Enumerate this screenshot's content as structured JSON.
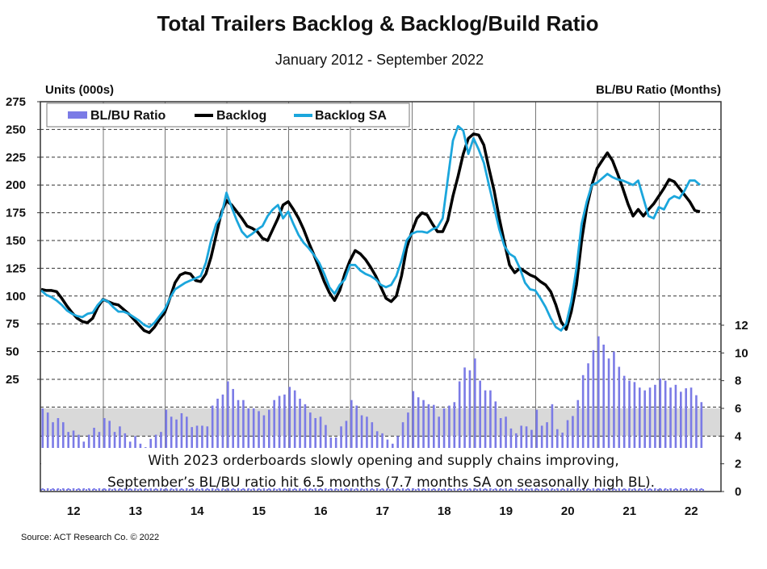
{
  "chart_data": {
    "type": "bar+line",
    "title": "Total Trailers Backlog & Backlog/Build Ratio",
    "subtitle": "January 2012 - September 2022",
    "ylabel_left": "Units (000s)",
    "ylabel_right": "BL/BU Ratio (Months)",
    "ylim_left": [
      0,
      275
    ],
    "ylim_right": [
      0,
      14
    ],
    "yticks_left": [
      "275",
      "250",
      "225",
      "200",
      "175",
      "150",
      "125",
      "100",
      "75",
      "50",
      "25"
    ],
    "yticks_right": [
      "12",
      "10",
      "8",
      "6",
      "4",
      "2",
      "0"
    ],
    "x_start": "2012-01",
    "x_end": "2022-09",
    "xticks": [
      "12",
      "13",
      "14",
      "15",
      "16",
      "17",
      "18",
      "19",
      "20",
      "21",
      "22"
    ],
    "grid": true,
    "shaded_band_right": [
      4,
      6
    ],
    "legend_position": "top-left",
    "colors": {
      "ratio": "#7b7be6",
      "backlog": "#000000",
      "backlog_sa": "#1ba6dc",
      "band": "#d9d9d9"
    },
    "series": [
      {
        "name": "BL/BU Ratio",
        "type": "bar",
        "axis": "right",
        "values": [
          6.0,
          5.7,
          5.0,
          5.3,
          5.0,
          4.3,
          4.4,
          4.1,
          3.6,
          4.1,
          4.6,
          4.3,
          5.3,
          5.1,
          4.3,
          4.7,
          4.2,
          3.6,
          4.0,
          3.45,
          3.2,
          3.8,
          4.1,
          4.3,
          5.9,
          5.4,
          5.2,
          5.65,
          5.4,
          4.65,
          4.75,
          4.75,
          4.7,
          6.2,
          6.7,
          7.0,
          7.95,
          7.4,
          6.6,
          6.6,
          6.0,
          6.0,
          5.8,
          5.5,
          5.9,
          6.6,
          6.9,
          7.0,
          7.55,
          7.3,
          6.7,
          6.3,
          5.7,
          5.3,
          5.4,
          4.8,
          3.9,
          3.9,
          4.7,
          5.1,
          6.6,
          6.2,
          5.5,
          5.4,
          5.0,
          4.35,
          4.2,
          3.75,
          3.45,
          4.0,
          5.0,
          5.7,
          7.25,
          6.8,
          6.6,
          6.3,
          6.25,
          5.4,
          6.0,
          6.2,
          6.45,
          7.95,
          8.95,
          8.75,
          9.6,
          8.0,
          7.3,
          7.3,
          6.5,
          5.3,
          5.4,
          4.55,
          4.2,
          4.75,
          4.7,
          4.45,
          5.9,
          4.75,
          5.0,
          6.3,
          4.5,
          4.25,
          5.15,
          5.45,
          6.6,
          8.4,
          9.25,
          10.2,
          11.2,
          10.6,
          9.6,
          10.1,
          9.0,
          8.35,
          8.0,
          7.9,
          7.5,
          7.3,
          7.5,
          7.7,
          8.15,
          8.0,
          7.5,
          7.7,
          7.2,
          7.45,
          7.5,
          6.95,
          6.45
        ]
      },
      {
        "name": "Backlog",
        "type": "line",
        "axis": "left",
        "values": [
          106,
          105,
          105,
          104,
          98,
          91,
          85,
          80,
          77,
          76,
          80,
          90,
          97,
          95,
          93,
          92,
          88,
          84,
          79,
          74,
          69,
          67,
          72,
          79,
          85,
          98,
          112,
          119,
          121,
          120,
          114,
          113,
          120,
          135,
          155,
          175,
          186,
          182,
          176,
          170,
          163,
          161,
          158,
          152,
          150,
          160,
          170,
          182,
          185,
          178,
          170,
          160,
          148,
          137,
          125,
          113,
          103,
          96,
          105,
          120,
          132,
          141,
          138,
          133,
          126,
          118,
          108,
          98,
          95,
          100,
          118,
          143,
          158,
          170,
          175,
          173,
          165,
          158,
          158,
          168,
          190,
          208,
          228,
          242,
          246,
          245,
          236,
          215,
          195,
          170,
          148,
          128,
          121,
          125,
          122,
          119,
          117,
          113,
          110,
          104,
          92,
          77,
          70,
          86,
          110,
          150,
          180,
          200,
          215,
          222,
          229,
          222,
          210,
          197,
          183,
          172,
          178,
          172,
          178,
          183,
          190,
          197,
          205,
          203,
          197,
          191,
          185,
          177,
          176
        ]
      },
      {
        "name": "Backlog SA",
        "type": "line",
        "axis": "left",
        "values": [
          105,
          101,
          99,
          96,
          92,
          87,
          84,
          82,
          81,
          84,
          85,
          92,
          97,
          95,
          90,
          86,
          86,
          84,
          81,
          78,
          74,
          72,
          76,
          82,
          88,
          98,
          106,
          109,
          112,
          114,
          116,
          118,
          130,
          150,
          165,
          172,
          193,
          180,
          168,
          158,
          153,
          156,
          160,
          163,
          172,
          178,
          182,
          170,
          176,
          165,
          155,
          148,
          143,
          137,
          130,
          120,
          108,
          102,
          110,
          115,
          128,
          128,
          123,
          120,
          118,
          115,
          110,
          108,
          110,
          118,
          132,
          150,
          156,
          158,
          158,
          157,
          160,
          162,
          170,
          205,
          240,
          253,
          249,
          228,
          242,
          232,
          220,
          200,
          180,
          160,
          145,
          138,
          135,
          125,
          112,
          106,
          105,
          98,
          90,
          80,
          72,
          69,
          75,
          95,
          125,
          165,
          185,
          200,
          202,
          206,
          210,
          207,
          205,
          204,
          202,
          200,
          204,
          188,
          172,
          170,
          180,
          178,
          187,
          190,
          188,
          195,
          204,
          204,
          200
        ]
      }
    ],
    "annotation": [
      "With 2023 orderboards slowly opening and supply chains improving,",
      "September’s BL/BU ratio hit 6.5 months (7.7 months SA on seasonally high BL)."
    ],
    "source": "Source: ACT Research Co. © 2022"
  }
}
